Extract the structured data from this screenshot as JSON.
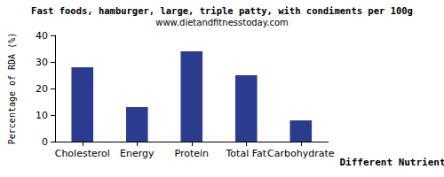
{
  "chart_data": {
    "type": "bar",
    "title": "Fast foods, hamburger, large, triple patty, with condiments per 100g",
    "subtitle": "www.dietandfitnesstoday.com",
    "x_label": "Different Nutrients",
    "y_label": "Percentage of RDA (%)",
    "categories": [
      "Cholesterol",
      "Energy",
      "Protein",
      "Total Fat",
      "Carbohydrate"
    ],
    "values": [
      28,
      13,
      34,
      25,
      8
    ],
    "color": "#2b3c8e",
    "ylim": [
      0,
      40
    ],
    "yticks": [
      0,
      10,
      20,
      30,
      40
    ],
    "grid": false
  }
}
